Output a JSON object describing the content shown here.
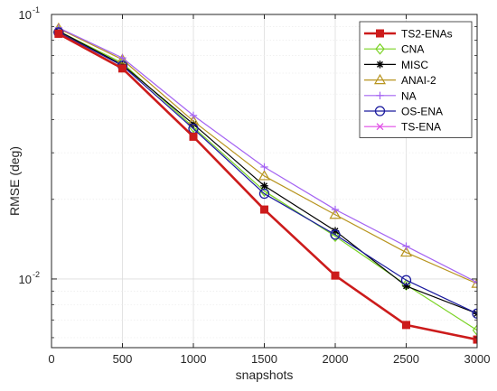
{
  "chart_data": {
    "type": "line",
    "title": "",
    "xlabel": "snapshots",
    "ylabel": "RMSE (deg)",
    "xscale": "linear",
    "yscale": "log",
    "xlim": [
      0,
      3000
    ],
    "ylim": [
      0.0055,
      0.1
    ],
    "grid": true,
    "legend_position": "top-right",
    "x_ticks": [
      0,
      500,
      1000,
      1500,
      2000,
      2500,
      3000
    ],
    "x_tick_labels": [
      "0",
      "500",
      "1000",
      "1500",
      "2000",
      "2500",
      "3000"
    ],
    "y_major_ticks": [
      {
        "value": 0.01,
        "base": "10",
        "exp": "-2"
      },
      {
        "value": 0.1,
        "base": "10",
        "exp": "-1"
      }
    ],
    "y_minor_ticks": [
      0.006,
      0.007,
      0.008,
      0.009,
      0.02,
      0.03,
      0.04,
      0.05,
      0.06,
      0.07,
      0.08,
      0.09
    ],
    "x": [
      50,
      500,
      1000,
      1500,
      2000,
      2500,
      3000
    ],
    "series": [
      {
        "name": "CNA",
        "color": "#7ad323",
        "marker": "diamond",
        "width": 1.2,
        "values": [
          0.0865,
          0.0655,
          0.0375,
          0.0215,
          0.0145,
          0.0095,
          0.0064
        ]
      },
      {
        "name": "MISC",
        "color": "#000000",
        "marker": "asterisk",
        "width": 1.2,
        "values": [
          0.0865,
          0.0645,
          0.0385,
          0.0225,
          0.0152,
          0.0094,
          0.0074
        ]
      },
      {
        "name": "ANAI-2",
        "color": "#b8941f",
        "marker": "triangle",
        "width": 1.2,
        "values": [
          0.0885,
          0.0675,
          0.0395,
          0.0245,
          0.0175,
          0.0126,
          0.0096
        ]
      },
      {
        "name": "NA",
        "color": "#a463f2",
        "marker": "plus",
        "width": 1.2,
        "values": [
          0.089,
          0.0685,
          0.0415,
          0.0265,
          0.0183,
          0.0133,
          0.0097
        ]
      },
      {
        "name": "OS-ENA",
        "color": "#1a1a9e",
        "marker": "circle",
        "width": 1.2,
        "values": [
          0.0855,
          0.064,
          0.037,
          0.021,
          0.0147,
          0.0099,
          0.0074
        ]
      },
      {
        "name": "TS-ENA",
        "color": "#e04ce6",
        "marker": "x",
        "width": 1.2,
        "values": [
          0.0845,
          0.0625,
          0.0345,
          0.0183,
          0.0103,
          0.0067,
          0.0059
        ]
      },
      {
        "name": "TS2-ENAs",
        "color": "#cc1b1b",
        "marker": "square",
        "width": 2.6,
        "values": [
          0.0845,
          0.0625,
          0.0345,
          0.0183,
          0.0103,
          0.0067,
          0.0059
        ]
      }
    ],
    "legend_order": [
      "TS2-ENAs",
      "CNA",
      "MISC",
      "ANAI-2",
      "NA",
      "OS-ENA",
      "TS-ENA"
    ]
  }
}
